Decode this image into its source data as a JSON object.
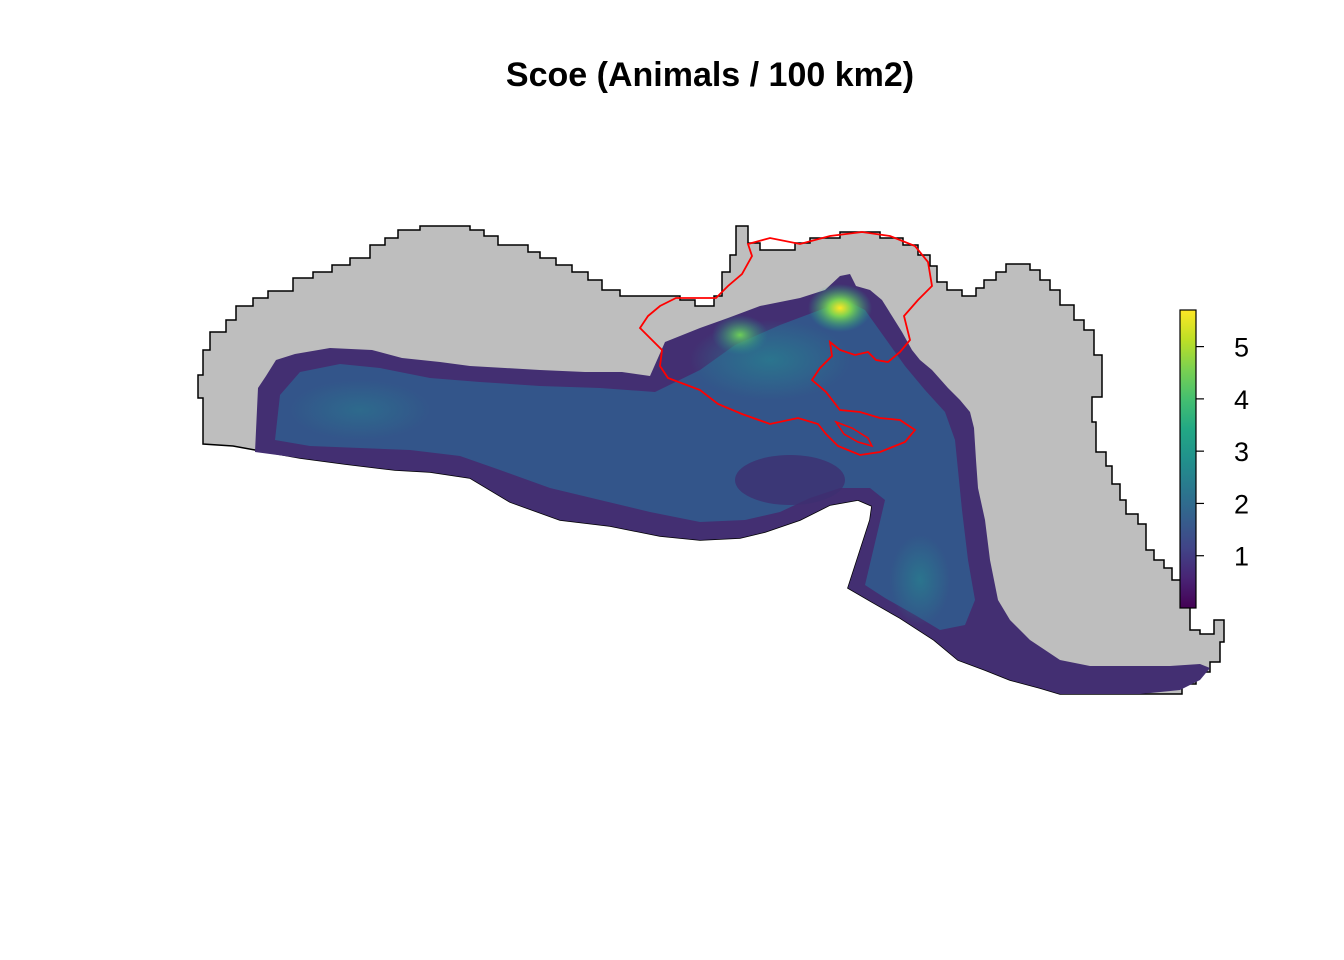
{
  "title": "Scoe (Animals / 100 km2)",
  "legend": {
    "min": 0,
    "max": 5.7,
    "ticks": [
      {
        "value": 1,
        "label": "1"
      },
      {
        "value": 2,
        "label": "2"
      },
      {
        "value": 3,
        "label": "3"
      },
      {
        "value": 4,
        "label": "4"
      },
      {
        "value": 5,
        "label": "5"
      }
    ],
    "colors": [
      "#440154",
      "#482475",
      "#414487",
      "#355f8d",
      "#2a788e",
      "#21918c",
      "#22a884",
      "#44bf70",
      "#7ad151",
      "#bddf26",
      "#fde725"
    ]
  },
  "colors": {
    "land": "#bebebe",
    "outline": "#000000",
    "overlay": "#ff0000",
    "density_low": "#3e2a6e",
    "density_mid": "#2e5c8a",
    "density_high": "#fde725"
  }
}
